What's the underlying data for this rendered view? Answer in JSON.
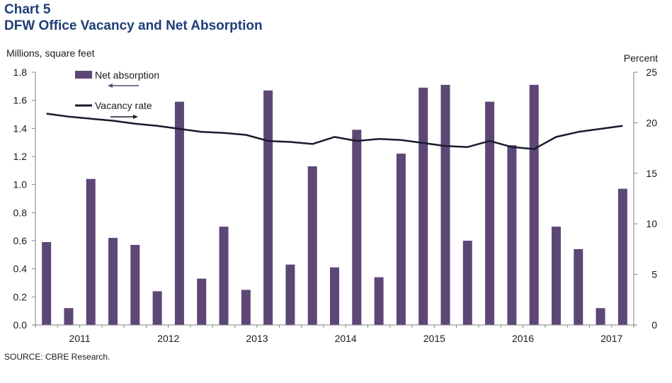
{
  "header": {
    "chart_number": "Chart 5",
    "title": "DFW Office Vacancy and Net Absorption"
  },
  "source": "SOURCE: CBRE Research.",
  "colors": {
    "bar": "#5c4777",
    "line": "#1a1a2e",
    "title": "#1f3e78",
    "axis": "#808080"
  },
  "chart_data": {
    "type": "bar",
    "title": "DFW Office Vacancy and Net Absorption",
    "left_axis_label": "Millions, square feet",
    "right_axis_label": "Percent",
    "y_left": {
      "min": 0,
      "max": 1.8,
      "ticks": [
        "0.0",
        "0.2",
        "0.4",
        "0.6",
        "0.8",
        "1.0",
        "1.2",
        "1.4",
        "1.6",
        "1.8"
      ]
    },
    "y_right": {
      "min": 0,
      "max": 25,
      "ticks": [
        "0",
        "5",
        "10",
        "15",
        "20",
        "25"
      ]
    },
    "x_labels": [
      "2011",
      "2012",
      "2013",
      "2014",
      "2015",
      "2016",
      "2017"
    ],
    "legend": [
      {
        "label": "Net absorption",
        "kind": "bar",
        "axis": "left"
      },
      {
        "label": "Vacancy rate",
        "kind": "line",
        "axis": "right"
      }
    ],
    "series": [
      {
        "name": "Net absorption",
        "kind": "bar",
        "axis": "left",
        "values": [
          0.59,
          0.12,
          1.04,
          0.62,
          0.57,
          0.24,
          1.59,
          0.33,
          0.7,
          0.25,
          1.67,
          0.43,
          1.13,
          0.41,
          1.39,
          0.34,
          1.22,
          1.69,
          1.71,
          0.6,
          1.59,
          1.28,
          1.71,
          0.7,
          0.54,
          0.12,
          0.97
        ]
      },
      {
        "name": "Vacancy rate",
        "kind": "line",
        "axis": "right",
        "values": [
          20.9,
          20.6,
          20.4,
          20.2,
          19.9,
          19.7,
          19.4,
          19.1,
          19.0,
          18.8,
          18.2,
          18.1,
          17.9,
          18.6,
          18.2,
          18.4,
          18.3,
          18.0,
          17.7,
          17.6,
          18.2,
          17.6,
          17.4,
          18.6,
          19.1,
          19.4,
          19.7
        ]
      }
    ],
    "legend_position": "top-left",
    "grid": false
  }
}
